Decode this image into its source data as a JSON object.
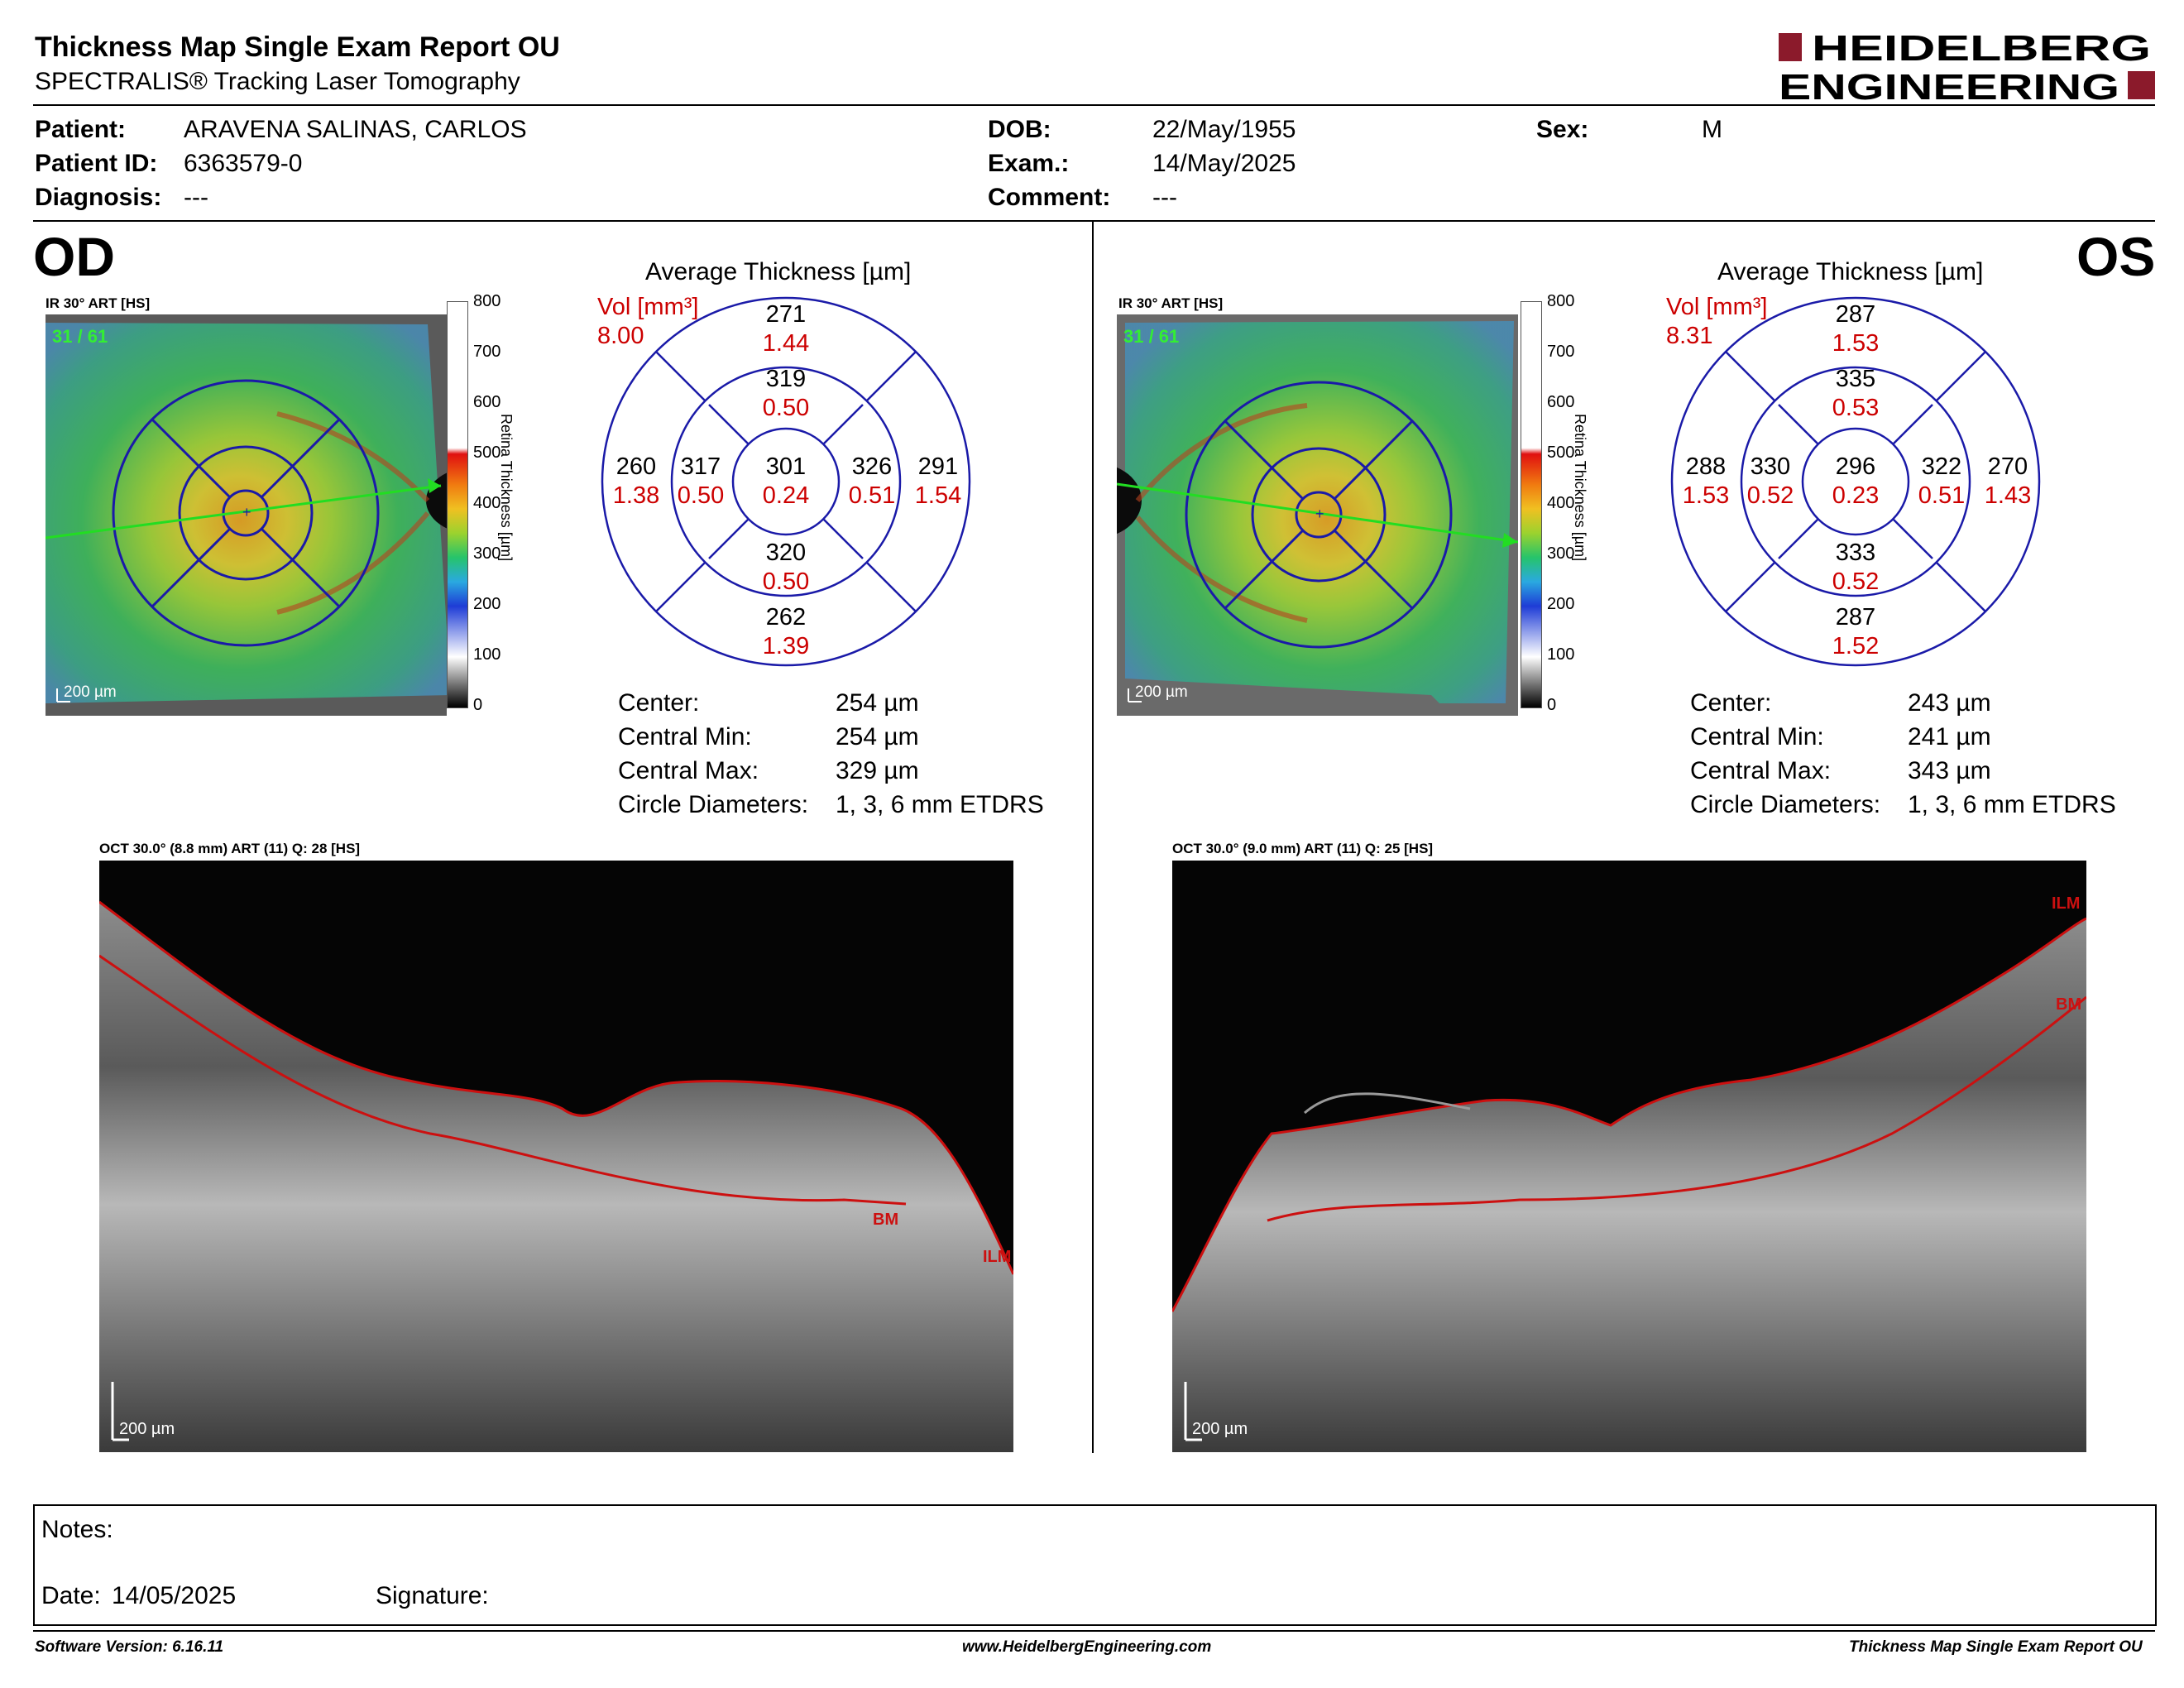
{
  "header": {
    "title": "Thickness Map Single Exam Report OU",
    "subtitle": "SPECTRALIS® Tracking Laser Tomography",
    "logo_line1": "HEIDELBERG",
    "logo_line2": "ENGINEERING"
  },
  "patient": {
    "patient_label": "Patient:",
    "patient_value": "ARAVENA SALINAS, CARLOS",
    "id_label": "Patient ID:",
    "id_value": "6363579-0",
    "diagnosis_label": "Diagnosis:",
    "diagnosis_value": "---",
    "dob_label": "DOB:",
    "dob_value": "22/May/1955",
    "exam_label": "Exam.:",
    "exam_value": "14/May/2025",
    "comment_label": "Comment:",
    "comment_value": "---",
    "sex_label": "Sex:",
    "sex_value": "M"
  },
  "od": {
    "eye": "OD",
    "ir_label": "IR 30° ART [HS]",
    "frames": "31 / 61",
    "scale_bar": "200 µm",
    "avg_title": "Average Thickness [µm]",
    "vol_label": "Vol [mm³]",
    "vol_value": "8.00",
    "sectors": {
      "outer_top": {
        "t": "271",
        "v": "1.44"
      },
      "inner_top": {
        "t": "319",
        "v": "0.50"
      },
      "outer_left": {
        "t": "260",
        "v": "1.38"
      },
      "inner_left": {
        "t": "317",
        "v": "0.50"
      },
      "center": {
        "t": "301",
        "v": "0.24"
      },
      "inner_right": {
        "t": "326",
        "v": "0.51"
      },
      "outer_right": {
        "t": "291",
        "v": "1.54"
      },
      "inner_bottom": {
        "t": "320",
        "v": "0.50"
      },
      "outer_bottom": {
        "t": "262",
        "v": "1.39"
      }
    },
    "stats": {
      "center_label": "Center:",
      "center_value": "254 µm",
      "min_label": "Central Min:",
      "min_value": "254 µm",
      "max_label": "Central Max:",
      "max_value": "329 µm",
      "diam_label": "Circle Diameters:",
      "diam_value": "1, 3, 6 mm ETDRS"
    },
    "oct_label": "OCT 30.0° (8.8 mm) ART (11) Q: 28 [HS]",
    "oct_scale": "200 µm",
    "bm": "BM",
    "ilm": "ILM"
  },
  "os": {
    "eye": "OS",
    "ir_label": "IR 30° ART [HS]",
    "frames": "31 / 61",
    "scale_bar": "200 µm",
    "avg_title": "Average Thickness [µm]",
    "vol_label": "Vol [mm³]",
    "vol_value": "8.31",
    "sectors": {
      "outer_top": {
        "t": "287",
        "v": "1.53"
      },
      "inner_top": {
        "t": "335",
        "v": "0.53"
      },
      "outer_left": {
        "t": "288",
        "v": "1.53"
      },
      "inner_left": {
        "t": "330",
        "v": "0.52"
      },
      "center": {
        "t": "296",
        "v": "0.23"
      },
      "inner_right": {
        "t": "322",
        "v": "0.51"
      },
      "outer_right": {
        "t": "270",
        "v": "1.43"
      },
      "inner_bottom": {
        "t": "333",
        "v": "0.52"
      },
      "outer_bottom": {
        "t": "287",
        "v": "1.52"
      }
    },
    "stats": {
      "center_label": "Center:",
      "center_value": "243 µm",
      "min_label": "Central Min:",
      "min_value": "241 µm",
      "max_label": "Central Max:",
      "max_value": "343 µm",
      "diam_label": "Circle Diameters:",
      "diam_value": "1, 3, 6 mm ETDRS"
    },
    "oct_label": "OCT 30.0° (9.0 mm) ART (11) Q: 25 [HS]",
    "oct_scale": "200 µm",
    "bm": "BM",
    "ilm": "ILM"
  },
  "colorscale": {
    "ticks": [
      "800",
      "700",
      "600",
      "500",
      "400",
      "300",
      "200",
      "100",
      "0"
    ],
    "title": "Retina  Thickness [µm]"
  },
  "notes": {
    "notes_label": "Notes:",
    "date_label": "Date:",
    "date_value": "14/05/2025",
    "signature_label": "Signature:"
  },
  "footer": {
    "software": "Software Version: 6.16.11",
    "website": "www.HeidelbergEngineering.com",
    "report": "Thickness Map Single Exam Report OU"
  },
  "colors": {
    "logo_red": "#8b1a2b",
    "vol_red": "#cc0000",
    "etdrs_blue": "#1a1aa8",
    "scan_line_green": "#22dd22",
    "seg_line_red": "#cc1010"
  }
}
